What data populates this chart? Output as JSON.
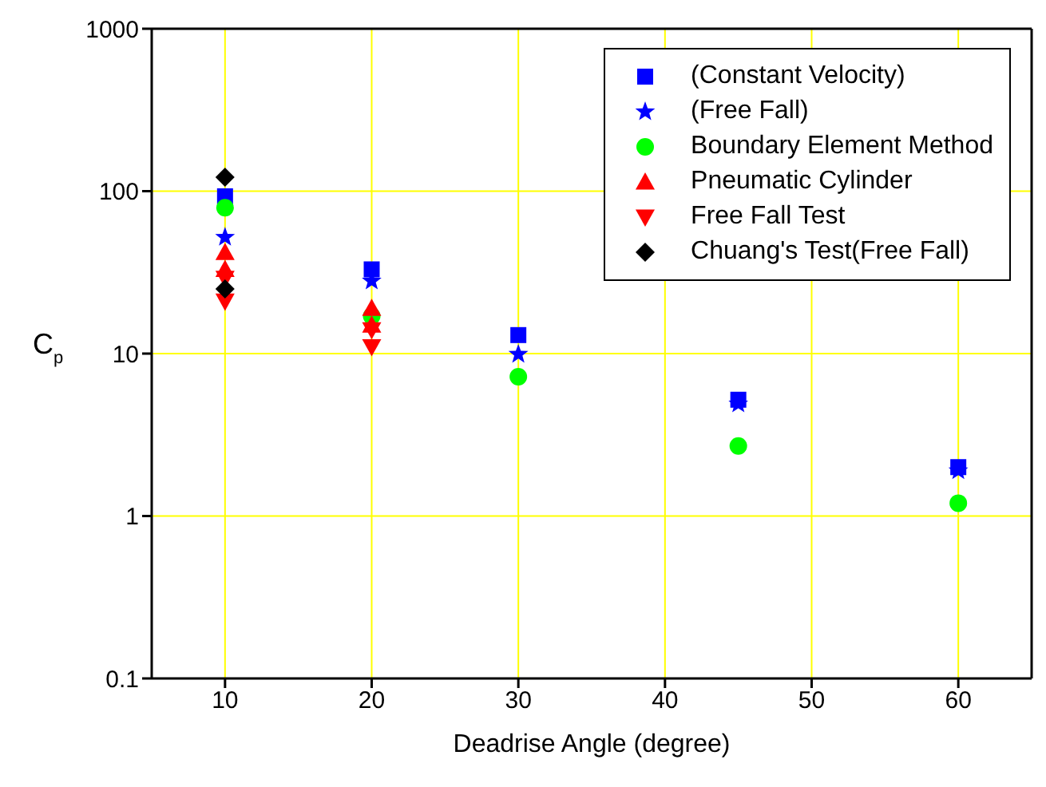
{
  "chart_data": {
    "type": "scatter",
    "xlabel": "Deadrise Angle (degree)",
    "ylabel": "C$_{p}$",
    "log": "y",
    "xlim": [
      5,
      65
    ],
    "xticks": [
      10,
      20,
      30,
      40,
      50,
      60
    ],
    "ylim": [
      0.1,
      1000
    ],
    "yticks": [
      0.1,
      1,
      10,
      100,
      1000
    ],
    "grid": true,
    "legend": "top right",
    "series": [
      {
        "name": "(Constant Velocity)",
        "color": "#0000ff",
        "marker": "square",
        "x": [
          10,
          20,
          30,
          45,
          60
        ],
        "values": [
          93,
          33,
          13,
          5.2,
          2.0
        ]
      },
      {
        "name": "(Free Fall)",
        "color": "#0000ff",
        "marker": "star",
        "x": [
          10,
          20,
          30,
          45,
          60
        ],
        "values": [
          52,
          28,
          9.9,
          4.9,
          1.9
        ]
      },
      {
        "name": "Boundary Element Method",
        "color": "#00ff00",
        "marker": "circle",
        "x": [
          10,
          20,
          30,
          45,
          60
        ],
        "values": [
          79,
          17,
          7.2,
          2.7,
          1.2
        ]
      },
      {
        "name": "Pneumatic Cylinder",
        "color": "#ff0000",
        "marker": "triangle",
        "x": [
          10,
          10,
          20,
          20
        ],
        "values": [
          42,
          33,
          19,
          15
        ]
      },
      {
        "name": "Free Fall Test",
        "color": "#ff0000",
        "marker": "triangle-down",
        "x": [
          10,
          10,
          20,
          20
        ],
        "values": [
          29,
          21,
          14,
          11
        ]
      },
      {
        "name": "Chuang's Test(Free Fall)",
        "color": "#000000",
        "marker": "diamond",
        "x": [
          10,
          10
        ],
        "values": [
          122,
          25
        ]
      }
    ]
  }
}
